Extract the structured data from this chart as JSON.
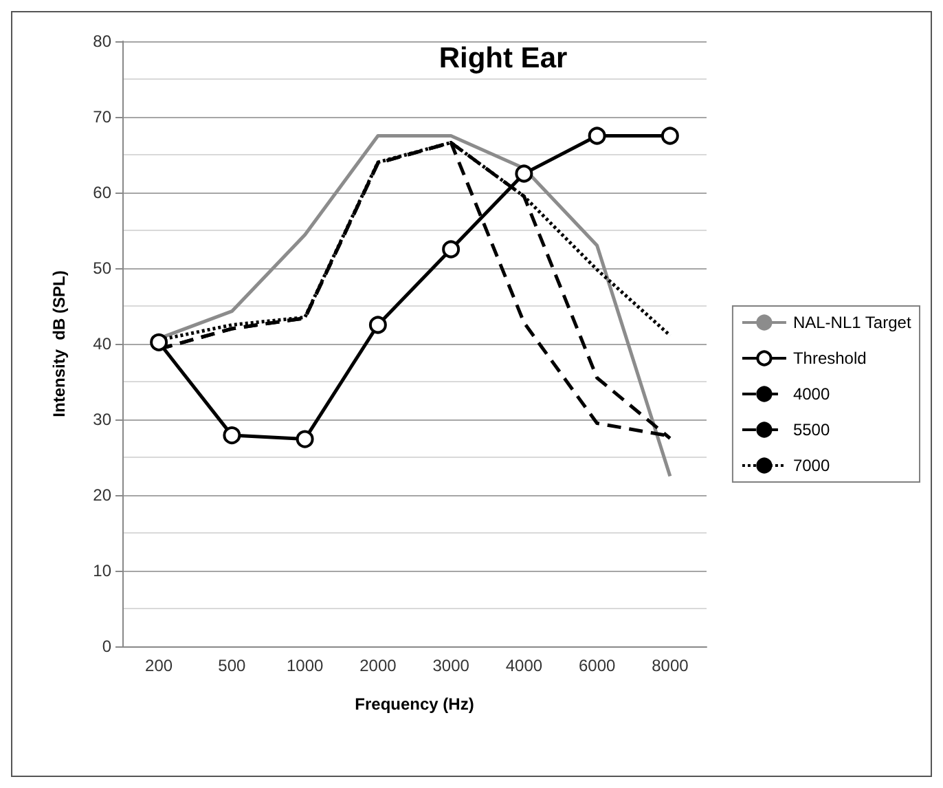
{
  "chart_data": {
    "type": "line",
    "title": "Right Ear",
    "xlabel": "Frequency (Hz)",
    "ylabel": "Intensity  dB (SPL)",
    "categories": [
      "200",
      "500",
      "1000",
      "2000",
      "3000",
      "4000",
      "6000",
      "8000"
    ],
    "series": [
      {
        "name": "NAL-NL1 Target",
        "color": "#8c8c8c",
        "line_style": "solid",
        "marker": "none",
        "values": [
          40.7,
          44.3,
          54.4,
          67.5,
          67.5,
          63.2,
          53,
          22.5
        ]
      },
      {
        "name": "Threshold",
        "color": "#000000",
        "line_style": "solid",
        "marker": "circle",
        "values": [
          40.2,
          27.9,
          27.4,
          42.5,
          52.5,
          62.5,
          67.5,
          67.5
        ]
      },
      {
        "name": "4000",
        "color": "#000000",
        "line_style": "dashed",
        "marker": "none",
        "values": [
          39.3,
          42,
          43.4,
          63.9,
          66.6,
          42.8,
          29.5,
          27.8
        ]
      },
      {
        "name": "5500",
        "color": "#000000",
        "line_style": "dashed",
        "marker": "none",
        "values": [
          39.3,
          42,
          43.4,
          63.9,
          66.6,
          59.5,
          35.5,
          27.5
        ]
      },
      {
        "name": "7000",
        "color": "#000000",
        "line_style": "dotted",
        "marker": "none",
        "values": [
          40.5,
          42.5,
          43.5,
          64,
          66.6,
          59.5,
          49.8,
          41.1
        ]
      }
    ],
    "ylim": [
      0,
      80
    ],
    "yticks": [
      0,
      10,
      20,
      30,
      40,
      50,
      60,
      70,
      80
    ],
    "grid": "y",
    "legend": "right"
  }
}
